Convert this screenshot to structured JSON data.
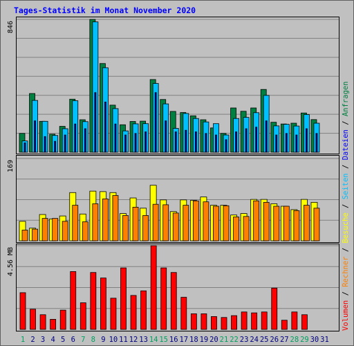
{
  "chart_data": {
    "type": "bar",
    "title": "Tages-Statistik im Monat November 2020",
    "categories": [
      "1",
      "2",
      "3",
      "4",
      "5",
      "6",
      "7",
      "8",
      "9",
      "10",
      "11",
      "12",
      "13",
      "14",
      "15",
      "16",
      "17",
      "18",
      "19",
      "20",
      "21",
      "22",
      "23",
      "24",
      "25",
      "26",
      "27",
      "28",
      "29",
      "30",
      "31"
    ],
    "weekend_days": [
      "1",
      "7",
      "8",
      "14",
      "15",
      "21",
      "22",
      "28",
      "29"
    ],
    "panels": [
      {
        "id": "hits",
        "ymax_label": "846",
        "ymax": 846,
        "series": [
          {
            "name": "Anfragen",
            "color": "#008040",
            "values": [
              120,
              374,
              197,
              115,
              165,
              338,
              207,
              846,
              565,
              300,
              175,
              196,
              198,
              463,
              336,
              260,
              253,
              232,
              207,
              155,
              120,
              282,
              261,
              282,
              400,
              191,
              180,
              185,
              250,
              208,
              null
            ]
          },
          {
            "name": "Seiten",
            "color": "#00c0ff",
            "values": [
              72,
              330,
              197,
              107,
              150,
              328,
              195,
              830,
              538,
              278,
              136,
              181,
              182,
              438,
              308,
              152,
              247,
              215,
              193,
              182,
              110,
              215,
              222,
              252,
              362,
              168,
              178,
              167,
              240,
              185,
              null
            ]
          },
          {
            "name": "Dateien",
            "color": "#0000a0",
            "values": [
              60,
              200,
              100,
              70,
              110,
              180,
              150,
              380,
              320,
              180,
              110,
              120,
              130,
              380,
              200,
              130,
              140,
              130,
              120,
              110,
              80,
              130,
              150,
              160,
              200,
              110,
              120,
              110,
              150,
              120,
              null
            ]
          }
        ]
      },
      {
        "id": "visits",
        "ymax_label": "169",
        "ymax": 169,
        "series": [
          {
            "name": "Besuche",
            "color": "#ffff00",
            "values": [
              40,
              26,
              54,
              45,
              51,
              99,
              55,
              102,
              101,
              99,
              56,
              88,
              67,
              114,
              84,
              60,
              84,
              83,
              90,
              73,
              73,
              53,
              56,
              85,
              85,
              76,
              71,
              64,
              85,
              79,
              null
            ]
          },
          {
            "name": "Rechner",
            "color": "#ff8000",
            "values": [
              22,
              24,
              46,
              46,
              40,
              73,
              39,
              76,
              86,
              93,
              52,
              69,
              52,
              75,
              74,
              57,
              73,
              82,
              80,
              71,
              72,
              49,
              50,
              82,
              79,
              71,
              71,
              62,
              73,
              67,
              null
            ]
          }
        ]
      },
      {
        "id": "volume",
        "ymax_label": "4.56 MB",
        "ymax": 4.56,
        "series": [
          {
            "name": "Volumen",
            "color": "#ff0000",
            "values": [
              2.0,
              1.1,
              0.8,
              0.55,
              1.05,
              3.15,
              1.45,
              3.1,
              2.8,
              1.7,
              3.35,
              1.85,
              2.1,
              4.56,
              3.35,
              3.1,
              1.75,
              0.85,
              0.85,
              0.7,
              0.65,
              0.75,
              0.95,
              0.9,
              0.95,
              2.25,
              0.5,
              0.95,
              0.8,
              null,
              null
            ]
          }
        ]
      }
    ],
    "legend": {
      "items": [
        {
          "label": "Volumen",
          "color": "#ff0000"
        },
        {
          "label": "Rechner",
          "color": "#ff8000"
        },
        {
          "label": "Besuche",
          "color": "#ffff00"
        },
        {
          "label": "Seiten",
          "color": "#00c0ff"
        },
        {
          "label": "Dateien",
          "color": "#0000ff"
        },
        {
          "label": "Anfragen",
          "color": "#008040"
        }
      ],
      "separator": "/",
      "position": "right-vertical"
    },
    "colors": {
      "background": "#c0c0c0",
      "title": "#0000ff",
      "weekday_label": "#000080",
      "weekend_label": "#00a060",
      "grid": "#808080"
    },
    "grid": true
  }
}
